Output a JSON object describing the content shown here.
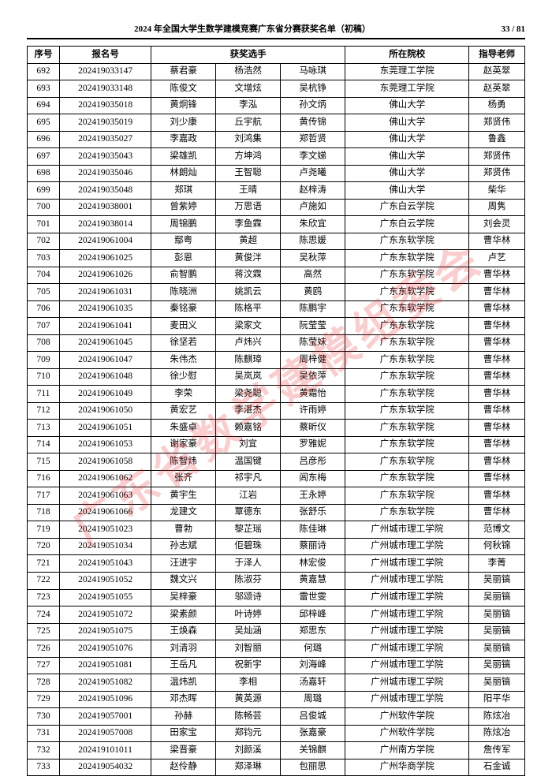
{
  "header": {
    "title": "2024 年全国大学生数学建模竞赛广东省分赛获奖名单（初稿）",
    "page_label": "33 / 81"
  },
  "watermark": "广东省数学建模组委会",
  "table": {
    "columns": [
      "序号",
      "报名号",
      "获奖选手",
      "所在院校",
      "指导老师"
    ],
    "rows": [
      {
        "n": "692",
        "id": "202419033147",
        "m": [
          "蔡君豪",
          "杨浩然",
          "马咏琪"
        ],
        "s": "东莞理工学院",
        "t": "赵英翠"
      },
      {
        "n": "693",
        "id": "202419033148",
        "m": [
          "陈俊文",
          "文增炫",
          "吴杭铮"
        ],
        "s": "东莞理工学院",
        "t": "赵英翠"
      },
      {
        "n": "694",
        "id": "202419035018",
        "m": [
          "黄炯锋",
          "李泓",
          "孙文炳"
        ],
        "s": "佛山大学",
        "t": "杨勇"
      },
      {
        "n": "695",
        "id": "202419035019",
        "m": [
          "刘少康",
          "丘宇航",
          "黄传锦"
        ],
        "s": "佛山大学",
        "t": "郑贤伟"
      },
      {
        "n": "696",
        "id": "202419035027",
        "m": [
          "李嘉政",
          "刘鸿集",
          "郑哲贤"
        ],
        "s": "佛山大学",
        "t": "鲁鑫"
      },
      {
        "n": "697",
        "id": "202419035043",
        "m": [
          "梁雄凯",
          "方坤鸿",
          "李文娣"
        ],
        "s": "佛山大学",
        "t": "郑贤伟"
      },
      {
        "n": "698",
        "id": "202419035046",
        "m": [
          "林朗灿",
          "王智聪",
          "卢尧曦"
        ],
        "s": "佛山大学",
        "t": "郑贤伟"
      },
      {
        "n": "699",
        "id": "202419035048",
        "m": [
          "郑琪",
          "王晴",
          "赵梓涛"
        ],
        "s": "佛山大学",
        "t": "柴华"
      },
      {
        "n": "700",
        "id": "202419038001",
        "m": [
          "曾紫婷",
          "万思语",
          "卢施如"
        ],
        "s": "广东白云学院",
        "t": "周隽"
      },
      {
        "n": "701",
        "id": "202419038014",
        "m": [
          "周锦鹏",
          "李鱼霖",
          "朱欣宜"
        ],
        "s": "广东白云学院",
        "t": "刘会灵"
      },
      {
        "n": "702",
        "id": "202419061004",
        "m": [
          "鄢粤",
          "黄超",
          "陈思媛"
        ],
        "s": "广东东软学院",
        "t": "曹华林"
      },
      {
        "n": "703",
        "id": "202419061025",
        "m": [
          "彭恩",
          "黄俊泮",
          "吴秋萍"
        ],
        "s": "广东东软学院",
        "t": "卢艺"
      },
      {
        "n": "704",
        "id": "202419061026",
        "m": [
          "俞智鹏",
          "蒋汶霖",
          "高然"
        ],
        "s": "广东东软学院",
        "t": "曹华林"
      },
      {
        "n": "705",
        "id": "202419061031",
        "m": [
          "陈晓洲",
          "姚凯云",
          "黄鸥"
        ],
        "s": "广东东软学院",
        "t": "曹华林"
      },
      {
        "n": "706",
        "id": "202419061035",
        "m": [
          "秦铭豪",
          "陈格平",
          "陈鹏宇"
        ],
        "s": "广东东软学院",
        "t": "曹华林"
      },
      {
        "n": "707",
        "id": "202419061041",
        "m": [
          "麦田义",
          "梁家文",
          "阮莹莹"
        ],
        "s": "广东东软学院",
        "t": "曹华林"
      },
      {
        "n": "708",
        "id": "202419061045",
        "m": [
          "徐坚若",
          "卢炜兴",
          "陈莹妹"
        ],
        "s": "广东东软学院",
        "t": "曹华林"
      },
      {
        "n": "709",
        "id": "202419061047",
        "m": [
          "朱伟杰",
          "陈麒璋",
          "周梓健"
        ],
        "s": "广东东软学院",
        "t": "曹华林"
      },
      {
        "n": "710",
        "id": "202419061048",
        "m": [
          "徐少慰",
          "吴岚岚",
          "吴依萍"
        ],
        "s": "广东东软学院",
        "t": "曹华林"
      },
      {
        "n": "711",
        "id": "202419061049",
        "m": [
          "李荣",
          "梁尧聪",
          "黄霜怡"
        ],
        "s": "广东东软学院",
        "t": "曹华林"
      },
      {
        "n": "712",
        "id": "202419061050",
        "m": [
          "黄宏艺",
          "李湛杰",
          "许雨婷"
        ],
        "s": "广东东软学院",
        "t": "曹华林"
      },
      {
        "n": "713",
        "id": "202419061051",
        "m": [
          "朱盛卓",
          "赖嘉铭",
          "蔡昕仪"
        ],
        "s": "广东东软学院",
        "t": "曹华林"
      },
      {
        "n": "714",
        "id": "202419061053",
        "m": [
          "谢家豪",
          "刘宜",
          "罗雅妮"
        ],
        "s": "广东东软学院",
        "t": "曹华林"
      },
      {
        "n": "715",
        "id": "202419061058",
        "m": [
          "陈智炜",
          "温国键",
          "吕彦彤"
        ],
        "s": "广东东软学院",
        "t": "曹华林"
      },
      {
        "n": "716",
        "id": "202419061062",
        "m": [
          "张齐",
          "祁宇凡",
          "闾东梅"
        ],
        "s": "广东东软学院",
        "t": "曹华林"
      },
      {
        "n": "717",
        "id": "202419061063",
        "m": [
          "黄宇生",
          "江岩",
          "王永婷"
        ],
        "s": "广东东软学院",
        "t": "曹华林"
      },
      {
        "n": "718",
        "id": "202419061066",
        "m": [
          "龙建文",
          "覃德东",
          "张舒乐"
        ],
        "s": "广东东软学院",
        "t": "曹华林"
      },
      {
        "n": "719",
        "id": "202419051023",
        "m": [
          "曹勃",
          "黎芷瑶",
          "陈佳琳"
        ],
        "s": "广州城市理工学院",
        "t": "范博文"
      },
      {
        "n": "720",
        "id": "202419051034",
        "m": [
          "孙志斌",
          "佢碧珠",
          "蔡丽诗"
        ],
        "s": "广州城市理工学院",
        "t": "何秋锦"
      },
      {
        "n": "721",
        "id": "202419051043",
        "m": [
          "汪进宇",
          "于泽人",
          "林宏俊"
        ],
        "s": "广州城市理工学院",
        "t": "李菁"
      },
      {
        "n": "722",
        "id": "202419051052",
        "m": [
          "魏文兴",
          "陈淑芬",
          "黄嘉慧"
        ],
        "s": "广州城市理工学院",
        "t": "吴丽镐"
      },
      {
        "n": "723",
        "id": "202419051055",
        "m": [
          "吴梓豪",
          "邬颂诗",
          "雷世雯"
        ],
        "s": "广州城市理工学院",
        "t": "吴丽镐"
      },
      {
        "n": "724",
        "id": "202419051072",
        "m": [
          "梁素颜",
          "叶诗婷",
          "邱梓峰"
        ],
        "s": "广州城市理工学院",
        "t": "吴丽镐"
      },
      {
        "n": "725",
        "id": "202419051075",
        "m": [
          "王焕森",
          "吴灿涵",
          "郑思东"
        ],
        "s": "广州城市理工学院",
        "t": "吴丽镐"
      },
      {
        "n": "726",
        "id": "202419051076",
        "m": [
          "刘清羽",
          "刘智丽",
          "何璐"
        ],
        "s": "广州城市理工学院",
        "t": "吴丽镐"
      },
      {
        "n": "727",
        "id": "202419051081",
        "m": [
          "王岳凡",
          "祝新宇",
          "刘海峰"
        ],
        "s": "广州城市理工学院",
        "t": "吴丽镐"
      },
      {
        "n": "728",
        "id": "202419051082",
        "m": [
          "温炜凯",
          "李相",
          "汤嘉轩"
        ],
        "s": "广州城市理工学院",
        "t": "吴丽镐"
      },
      {
        "n": "729",
        "id": "202419051096",
        "m": [
          "邓杰晖",
          "黄英源",
          "周璐"
        ],
        "s": "广州城市理工学院",
        "t": "阳平华"
      },
      {
        "n": "730",
        "id": "202419057001",
        "m": [
          "孙赫",
          "陈畅芸",
          "吕俊城"
        ],
        "s": "广州软件学院",
        "t": "陈炫冶"
      },
      {
        "n": "731",
        "id": "202419057008",
        "m": [
          "田家宝",
          "郑钧元",
          "张嘉豪"
        ],
        "s": "广州软件学院",
        "t": "陈炫冶"
      },
      {
        "n": "732",
        "id": "202419101011",
        "m": [
          "梁晋豪",
          "刘颜溪",
          "关锦麒"
        ],
        "s": "广州南方学院",
        "t": "詹传军"
      },
      {
        "n": "733",
        "id": "202419054032",
        "m": [
          "赵伶静",
          "郑泽琳",
          "包丽思"
        ],
        "s": "广州华商学院",
        "t": "石金诚"
      }
    ]
  }
}
